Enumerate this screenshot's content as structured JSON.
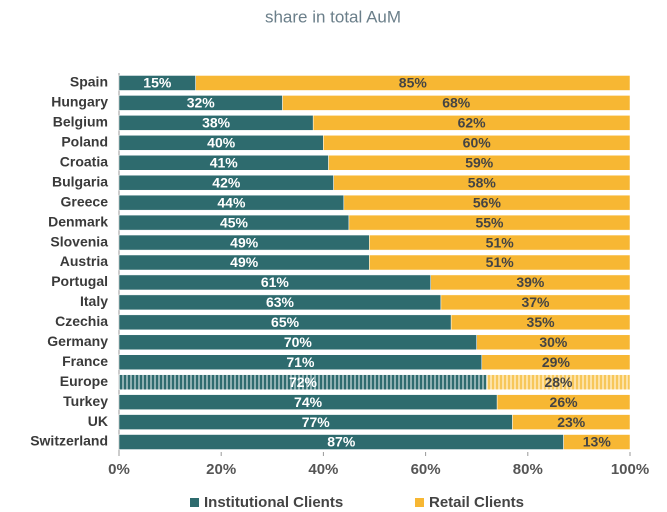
{
  "chart_data": {
    "type": "stacked-bar-horizontal",
    "title": "share in total AuM",
    "categories": [
      "Spain",
      "Hungary",
      "Belgium",
      "Poland",
      "Croatia",
      "Bulgaria",
      "Greece",
      "Denmark",
      "Slovenia",
      "Austria",
      "Portugal",
      "Italy",
      "Czechia",
      "Germany",
      "France",
      "Europe",
      "Turkey",
      "UK",
      "Switzerland"
    ],
    "series": [
      {
        "name": "Institutional Clients",
        "color": "#2e6b6e",
        "values": [
          15,
          32,
          38,
          40,
          41,
          42,
          44,
          45,
          49,
          49,
          61,
          63,
          65,
          70,
          71,
          72,
          74,
          77,
          87
        ],
        "value_labels": [
          "15%",
          "32%",
          "38%",
          "40%",
          "41%",
          "42%",
          "44%",
          "45%",
          "49%",
          "49%",
          "61%",
          "63%",
          "65%",
          "70%",
          "71%",
          "72%",
          "74%",
          "77%",
          "87%"
        ]
      },
      {
        "name": "Retail Clients",
        "color": "#f7b733",
        "values": [
          85,
          68,
          62,
          60,
          59,
          58,
          56,
          55,
          51,
          51,
          39,
          37,
          35,
          30,
          29,
          28,
          26,
          23,
          13
        ],
        "value_labels": [
          "85%",
          "68%",
          "62%",
          "60%",
          "59%",
          "58%",
          "56%",
          "55%",
          "51%",
          "51%",
          "39%",
          "37%",
          "35%",
          "30%",
          "29%",
          "28%",
          "26%",
          "23%",
          "13%"
        ]
      }
    ],
    "xlim": [
      0,
      100
    ],
    "xticks": [
      {
        "value": 0,
        "label": "0%"
      },
      {
        "value": 20,
        "label": "20%"
      },
      {
        "value": 40,
        "label": "40%"
      },
      {
        "value": 60,
        "label": "60%"
      },
      {
        "value": 80,
        "label": "80%"
      },
      {
        "value": 100,
        "label": "100%"
      }
    ],
    "hatched": "Europe",
    "legend": "bottom"
  }
}
